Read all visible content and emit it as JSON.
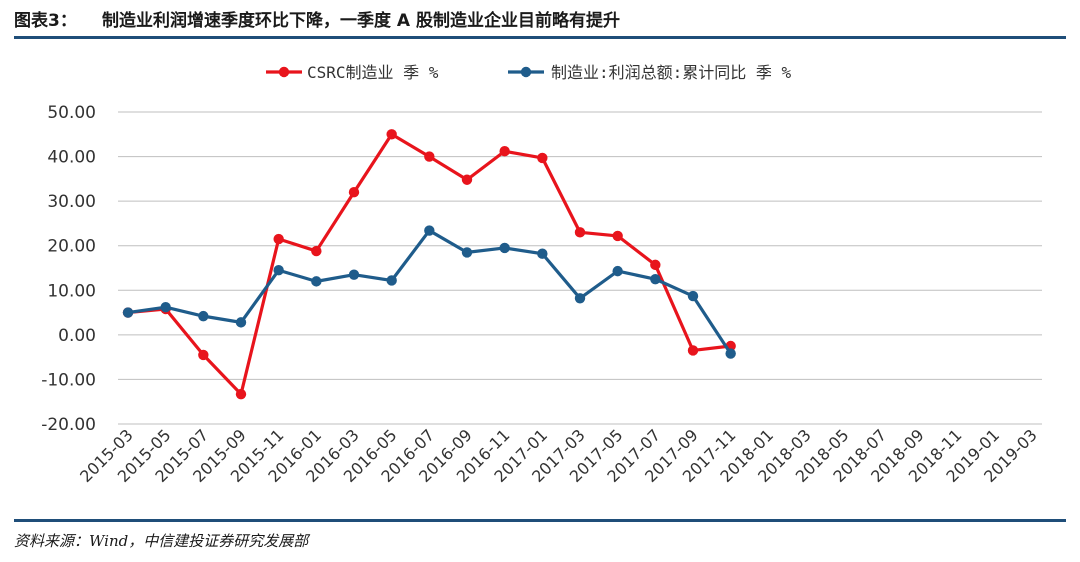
{
  "header": {
    "figure_label": "图表3：",
    "title": "制造业利润增速季度环比下降，一季度 A 股制造业企业目前略有提升"
  },
  "source": "资料来源：Wind，中信建投证券研究发展部",
  "colors": {
    "series_1": "#e8141c",
    "series_2": "#1f5c8b",
    "rule": "#1f4e79",
    "grid": "#bfbfbf"
  },
  "chart_data": {
    "type": "line",
    "title": "",
    "xlabel": "",
    "ylabel": "",
    "ylim": [
      -20,
      50
    ],
    "yticks": [
      "50.00",
      "40.00",
      "30.00",
      "20.00",
      "10.00",
      "0.00",
      "-10.00",
      "-20.00"
    ],
    "ytick_values": [
      50,
      40,
      30,
      20,
      10,
      0,
      -10,
      -20
    ],
    "grid": true,
    "legend_position": "top-center",
    "categories": [
      "2015-03",
      "2015-05",
      "2015-07",
      "2015-09",
      "2015-11",
      "2016-01",
      "2016-03",
      "2016-05",
      "2016-07",
      "2016-09",
      "2016-11",
      "2017-01",
      "2017-03",
      "2017-05",
      "2017-07",
      "2017-09",
      "2017-11",
      "2018-01",
      "2018-03",
      "2018-05",
      "2018-07",
      "2018-09",
      "2018-11",
      "2019-01",
      "2019-03"
    ],
    "series": [
      {
        "name": "CSRC制造业  季 %",
        "points": [
          [
            0,
            5.0
          ],
          [
            2,
            5.8
          ],
          [
            4,
            -4.5
          ],
          [
            6,
            -13.3
          ],
          [
            8,
            21.5
          ],
          [
            10,
            18.8
          ],
          [
            12,
            32.0
          ],
          [
            14,
            45.0
          ],
          [
            16,
            40.0
          ],
          [
            18,
            34.8
          ],
          [
            20,
            41.2
          ],
          [
            22,
            39.7
          ],
          [
            24,
            23.0
          ],
          [
            26,
            22.2
          ],
          [
            28,
            15.7
          ],
          [
            30,
            -3.5
          ],
          [
            32,
            -2.5
          ]
        ]
      },
      {
        "name": "制造业:利润总额:累计同比  季 %",
        "points": [
          [
            0,
            5.0
          ],
          [
            2,
            6.2
          ],
          [
            4,
            4.2
          ],
          [
            6,
            2.8
          ],
          [
            8,
            14.5
          ],
          [
            10,
            12.0
          ],
          [
            12,
            13.5
          ],
          [
            14,
            12.2
          ],
          [
            16,
            23.4
          ],
          [
            18,
            18.5
          ],
          [
            20,
            19.5
          ],
          [
            22,
            18.2
          ],
          [
            24,
            8.2
          ],
          [
            26,
            14.3
          ],
          [
            28,
            12.5
          ],
          [
            30,
            8.7
          ],
          [
            32,
            -4.2
          ]
        ]
      }
    ]
  }
}
